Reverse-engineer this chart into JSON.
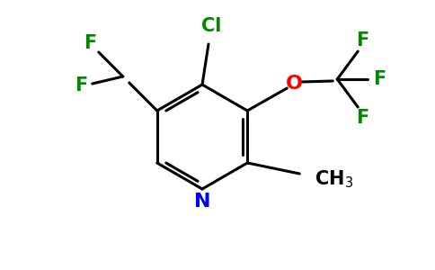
{
  "background_color": "#ffffff",
  "atom_colors": {
    "N": "#0000ee",
    "O": "#ff0000",
    "Cl": "#008800",
    "F": "#008800",
    "C": "#000000"
  },
  "bond_lw": 2.2,
  "figsize": [
    4.84,
    3.0
  ],
  "dpi": 100,
  "xlim": [
    0,
    484
  ],
  "ylim": [
    0,
    300
  ]
}
